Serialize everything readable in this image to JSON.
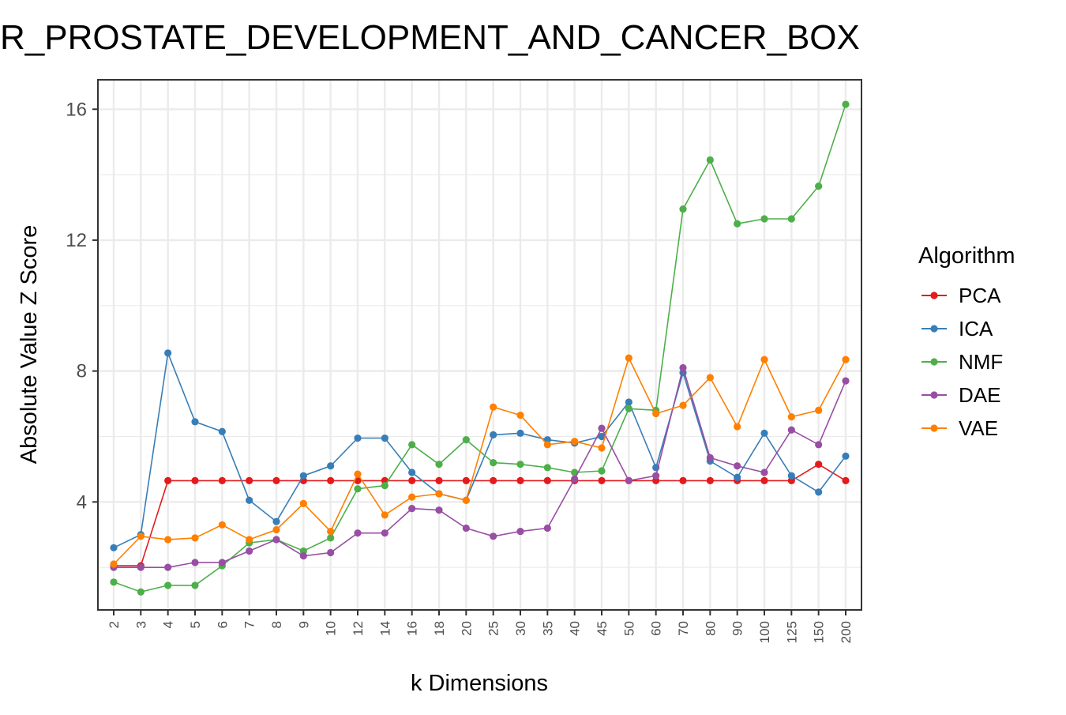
{
  "chart_data": {
    "type": "line",
    "title": "R_PROSTATE_DEVELOPMENT_AND_CANCER_BOX",
    "xlabel": "k Dimensions",
    "ylabel": "Absolute Value Z Score",
    "categories": [
      "2",
      "3",
      "4",
      "5",
      "6",
      "7",
      "8",
      "9",
      "10",
      "12",
      "14",
      "16",
      "18",
      "20",
      "25",
      "30",
      "35",
      "40",
      "45",
      "50",
      "60",
      "70",
      "80",
      "90",
      "100",
      "125",
      "150",
      "200"
    ],
    "yticks": [
      "4",
      "8",
      "12",
      "16"
    ],
    "ylim": [
      0.7,
      16.9
    ],
    "grid": true,
    "legend": {
      "title": "Algorithm",
      "placement": "right"
    },
    "series": [
      {
        "name": "PCA",
        "color": "#E41A1C",
        "values": [
          2.05,
          2.05,
          4.65,
          4.65,
          4.65,
          4.65,
          4.65,
          4.65,
          4.65,
          4.65,
          4.65,
          4.65,
          4.65,
          4.65,
          4.65,
          4.65,
          4.65,
          4.65,
          4.65,
          4.65,
          4.65,
          4.65,
          4.65,
          4.65,
          4.65,
          4.65,
          5.15,
          4.65
        ]
      },
      {
        "name": "ICA",
        "color": "#377EB8",
        "values": [
          2.6,
          3.0,
          8.55,
          6.45,
          6.15,
          4.05,
          3.4,
          4.8,
          5.1,
          5.95,
          5.95,
          4.9,
          4.25,
          4.05,
          6.05,
          6.1,
          5.9,
          5.8,
          6.0,
          7.05,
          5.05,
          7.95,
          5.25,
          4.75,
          6.1,
          4.8,
          4.3,
          5.4
        ]
      },
      {
        "name": "NMF",
        "color": "#4DAF4A",
        "values": [
          1.55,
          1.25,
          1.45,
          1.45,
          2.05,
          2.75,
          2.85,
          2.5,
          2.9,
          4.4,
          4.5,
          5.75,
          5.15,
          5.9,
          5.2,
          5.15,
          5.05,
          4.9,
          4.95,
          6.85,
          6.8,
          12.95,
          14.45,
          12.5,
          12.65,
          12.65,
          13.65,
          16.15
        ]
      },
      {
        "name": "DAE",
        "color": "#984EA3",
        "values": [
          2.0,
          2.0,
          2.0,
          2.15,
          2.15,
          2.5,
          2.85,
          2.35,
          2.45,
          3.05,
          3.05,
          3.8,
          3.75,
          3.2,
          2.95,
          3.1,
          3.2,
          4.7,
          6.25,
          4.65,
          4.8,
          8.1,
          5.35,
          5.1,
          4.9,
          6.2,
          5.75,
          7.7
        ]
      },
      {
        "name": "VAE",
        "color": "#FF7F00",
        "values": [
          2.1,
          2.95,
          2.85,
          2.9,
          3.3,
          2.85,
          3.15,
          3.95,
          3.1,
          4.85,
          3.6,
          4.15,
          4.25,
          4.05,
          6.9,
          6.65,
          5.75,
          5.85,
          5.65,
          8.4,
          6.7,
          6.95,
          7.8,
          6.3,
          8.35,
          6.6,
          6.8,
          8.35
        ]
      }
    ]
  }
}
